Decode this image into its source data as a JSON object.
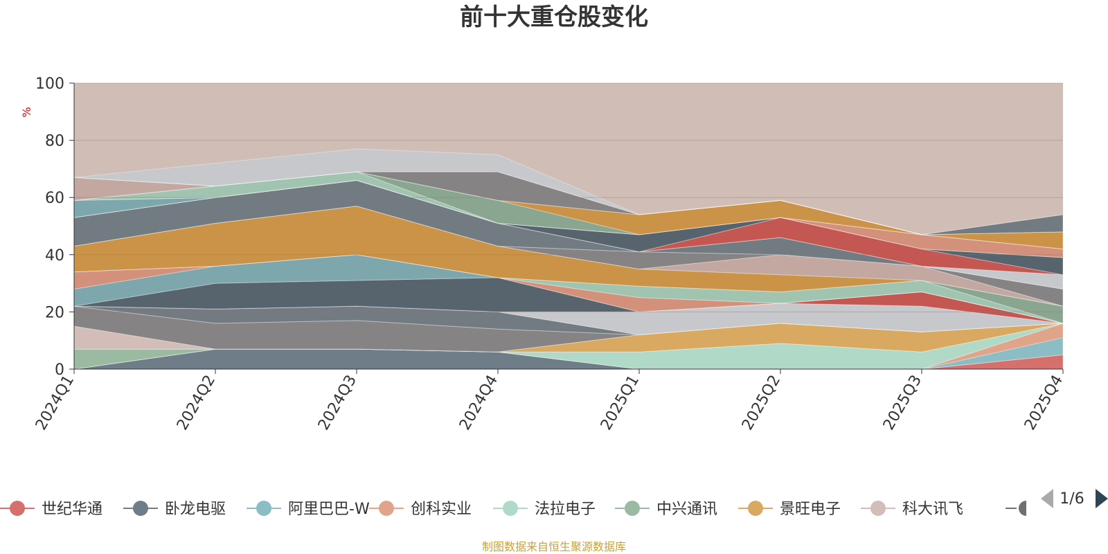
{
  "chart_data": {
    "type": "area",
    "title": "前十大重仓股变化",
    "yunit": "%",
    "ylim": [
      0,
      100
    ],
    "yticks": [
      0,
      20,
      40,
      60,
      80,
      100
    ],
    "grid": true,
    "legend_position": "bottom",
    "categories": [
      "2024Q1",
      "2024Q2",
      "2024Q3",
      "2024Q4",
      "2025Q1",
      "2025Q2",
      "2025Q3",
      "2025Q4"
    ],
    "background_color": "#d0bdb6",
    "series": [
      {
        "name": "世纪华通",
        "color": "#d5706c",
        "values": [
          0,
          0,
          0,
          0,
          0,
          0,
          0,
          5
        ]
      },
      {
        "name": "卧龙电驱",
        "color": "#6e7d88",
        "values": [
          0,
          7,
          7,
          6,
          0,
          0,
          0,
          0
        ]
      },
      {
        "name": "阿里巴巴-W",
        "color": "#8cbcc4",
        "values": [
          0,
          0,
          0,
          0,
          0,
          0,
          0,
          6
        ]
      },
      {
        "name": "创科实业",
        "color": "#e0a48b",
        "values": [
          0,
          0,
          0,
          0,
          0,
          0,
          0,
          5
        ]
      },
      {
        "name": "法拉电子",
        "color": "#b1d9c7",
        "values": [
          0,
          0,
          0,
          0,
          6,
          9,
          6,
          0
        ]
      },
      {
        "name": "中兴通讯",
        "color": "#9abaa1",
        "values": [
          7,
          0,
          0,
          0,
          0,
          0,
          0,
          0
        ]
      },
      {
        "name": "景旺电子",
        "color": "#d9a961",
        "values": [
          0,
          0,
          0,
          0,
          6,
          7,
          7,
          0
        ]
      },
      {
        "name": "科大讯飞",
        "color": "#d3bdb8",
        "values": [
          8,
          0,
          0,
          0,
          0,
          0,
          0,
          0
        ]
      },
      {
        "values": [
          7,
          9,
          10,
          8,
          0,
          0,
          0,
          0
        ]
      },
      {
        "values": [
          0,
          5,
          5,
          6,
          0,
          0,
          0,
          0
        ]
      },
      {
        "values": [
          0,
          0,
          0,
          0,
          8,
          7,
          9,
          0
        ]
      },
      {
        "values": [
          0,
          0,
          0,
          0,
          0,
          0,
          5,
          0
        ]
      },
      {
        "values": [
          0,
          9,
          9,
          12,
          0,
          0,
          0,
          0
        ]
      },
      {
        "values": [
          6,
          6,
          9,
          0,
          0,
          0,
          0,
          0
        ]
      },
      {
        "values": [
          6,
          0,
          0,
          0,
          5,
          0,
          0,
          0
        ]
      },
      {
        "values": [
          0,
          0,
          0,
          0,
          4,
          4,
          4,
          0
        ]
      },
      {
        "values": [
          0,
          0,
          0,
          0,
          0,
          0,
          0,
          6
        ]
      },
      {
        "values": [
          9,
          15,
          17,
          11,
          6,
          6,
          0,
          0
        ]
      },
      {
        "values": [
          0,
          0,
          0,
          0,
          0,
          7,
          5,
          0
        ]
      },
      {
        "values": [
          0,
          0,
          0,
          0,
          6,
          0,
          0,
          6
        ]
      },
      {
        "values": [
          10,
          9,
          9,
          8,
          0,
          6,
          0,
          0
        ]
      },
      {
        "values": [
          0,
          0,
          0,
          0,
          0,
          0,
          0,
          5
        ]
      },
      {
        "values": [
          0,
          0,
          0,
          0,
          0,
          7,
          6,
          0
        ]
      },
      {
        "values": [
          0,
          0,
          0,
          0,
          6,
          0,
          0,
          6
        ]
      },
      {
        "values": [
          6,
          0,
          0,
          0,
          0,
          0,
          0,
          0
        ]
      },
      {
        "values": [
          0,
          0,
          0,
          0,
          0,
          0,
          5,
          3
        ]
      },
      {
        "values": [
          0,
          4,
          3,
          0,
          0,
          0,
          0,
          0
        ]
      },
      {
        "values": [
          0,
          0,
          0,
          8,
          0,
          0,
          0,
          0
        ]
      },
      {
        "values": [
          0,
          0,
          0,
          0,
          7,
          6,
          0,
          6
        ]
      },
      {
        "values": [
          8,
          0,
          0,
          0,
          0,
          0,
          0,
          0
        ]
      },
      {
        "values": [
          0,
          0,
          0,
          10,
          0,
          0,
          0,
          0
        ]
      },
      {
        "values": [
          0,
          0,
          0,
          0,
          0,
          0,
          0,
          6
        ]
      },
      {
        "values": [
          0,
          8,
          8,
          6,
          0,
          0,
          0,
          0
        ]
      }
    ]
  },
  "legend": {
    "page": "1/6"
  },
  "source_note": "制图数据来自恒生聚源数据库"
}
